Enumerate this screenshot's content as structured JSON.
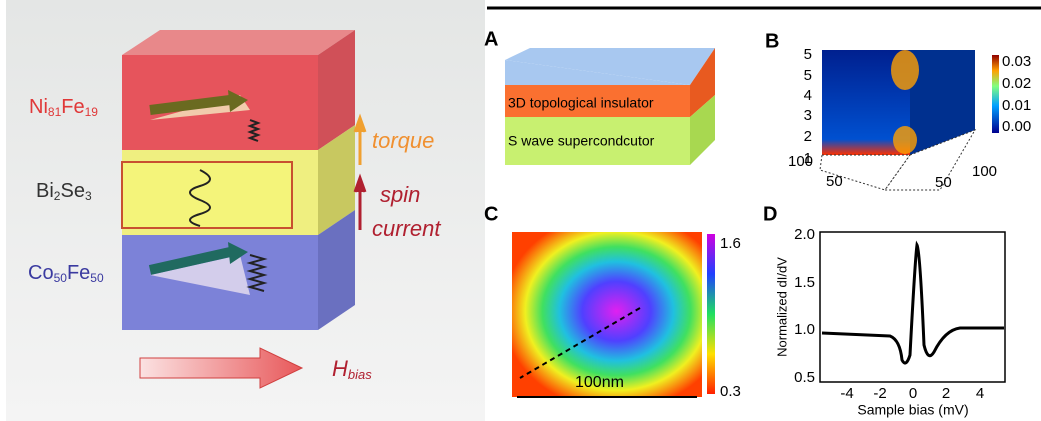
{
  "left": {
    "layers": [
      {
        "parts": [
          "Ni",
          "81",
          "Fe",
          "19"
        ]
      },
      {
        "parts": [
          "Bi",
          "2",
          "Se",
          "3"
        ]
      },
      {
        "parts": [
          "Co",
          "50",
          "Fe",
          "50"
        ]
      }
    ],
    "torque": "torque",
    "spin_current": [
      "spin",
      "current"
    ],
    "field": {
      "symbol": "H",
      "sub": "bias"
    }
  },
  "panel_a": {
    "label": "A",
    "top_layer": "3D topological insulator",
    "bottom_layer": "S wave supercondcutor"
  },
  "panel_b": {
    "label": "B",
    "z_ticks": [
      "1",
      "2",
      "3",
      "4",
      "5"
    ],
    "colorbar_ticks": [
      "0.03",
      "0.02",
      "0.01",
      "0.00"
    ],
    "base_ticks": [
      "100",
      "50",
      "50",
      "100"
    ]
  },
  "panel_c": {
    "label": "C",
    "colorbar_max": "1.6",
    "colorbar_min": "0.3",
    "scale": "100nm"
  },
  "panel_d": {
    "label": "D",
    "y_label": "Normalized dI/dV",
    "x_label": "Sample bias (mV)",
    "y_ticks": [
      "2.0",
      "1.5",
      "1.0",
      "0.5"
    ],
    "x_ticks": [
      "-4",
      "-2",
      "0",
      "2",
      "4"
    ]
  }
}
